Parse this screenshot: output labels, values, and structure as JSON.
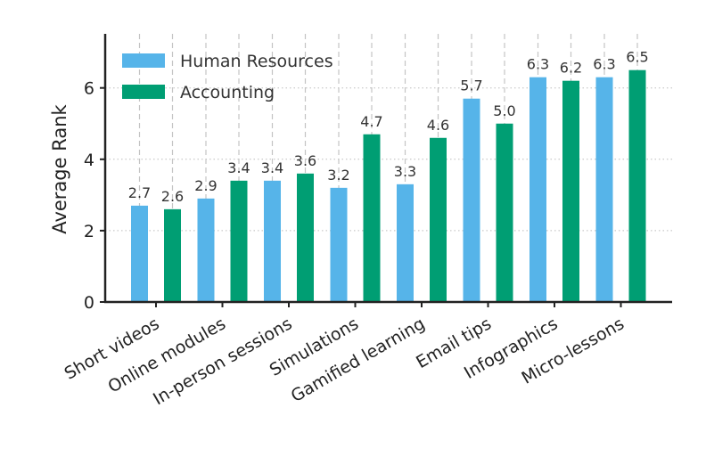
{
  "chart_data": {
    "type": "bar",
    "title": "",
    "xlabel": "",
    "ylabel": "Average Rank",
    "ylim": [
      0,
      7.5
    ],
    "yticks": [
      0,
      2,
      4,
      6
    ],
    "legend_position": "top-left",
    "categories": [
      "Short videos",
      "Online modules",
      "In-person sessions",
      "Simulations",
      "Gamified learning",
      "Email tips",
      "Infographics",
      "Micro-lessons"
    ],
    "series": [
      {
        "name": "Human Resources",
        "color": "#56b4e9",
        "values": [
          2.7,
          2.9,
          3.4,
          3.2,
          3.3,
          5.7,
          6.3,
          6.3
        ],
        "labels": [
          "2.7",
          "2.9",
          "3.4",
          "3.2",
          "3.3",
          "5.7",
          "6.3",
          "6.3"
        ]
      },
      {
        "name": "Accounting",
        "color": "#009e73",
        "values": [
          2.6,
          3.4,
          3.6,
          4.7,
          4.6,
          5.0,
          6.2,
          6.5
        ],
        "labels": [
          "2.6",
          "3.4",
          "3.6",
          "4.7",
          "4.6",
          "5.0",
          "6.2",
          "6.5"
        ]
      }
    ]
  }
}
